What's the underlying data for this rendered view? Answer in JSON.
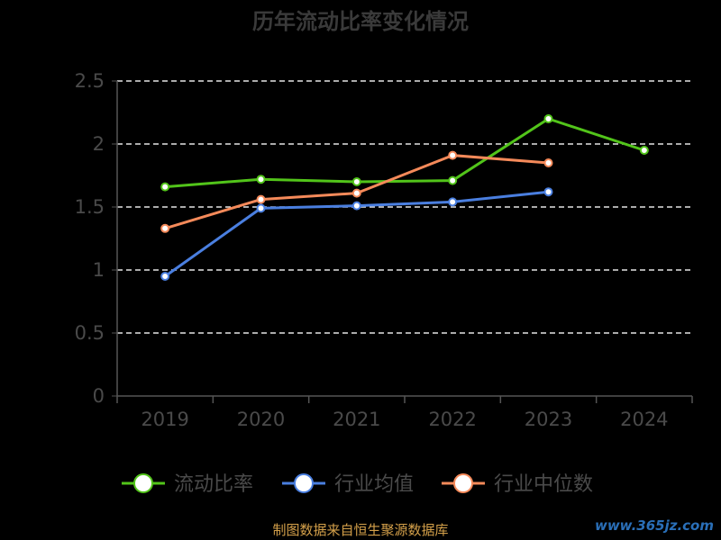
{
  "chart_data": {
    "type": "line",
    "title": "历年流动比率变化情况",
    "categories": [
      "2019",
      "2020",
      "2021",
      "2022",
      "2023",
      "2024"
    ],
    "ylim": [
      0,
      2.5
    ],
    "yticks": [
      "0",
      "0.5",
      "1",
      "1.5",
      "2",
      "2.5"
    ],
    "ytick_values": [
      0,
      0.5,
      1,
      1.5,
      2,
      2.5
    ],
    "grid": true,
    "legend_position": "bottom",
    "series": [
      {
        "name": "流动比率",
        "color": "#52c41a",
        "values": [
          1.66,
          1.72,
          1.7,
          1.71,
          2.2,
          1.95
        ]
      },
      {
        "name": "行业均值",
        "color": "#4a7fe0",
        "values": [
          0.95,
          1.49,
          1.51,
          1.54,
          1.62,
          null
        ]
      },
      {
        "name": "行业中位数",
        "color": "#f58a5a",
        "values": [
          1.33,
          1.56,
          1.61,
          1.91,
          1.85,
          null
        ]
      }
    ]
  },
  "footer": {
    "source": "制图数据来自恒生聚源数据库",
    "watermark": "www.365jz.com"
  }
}
